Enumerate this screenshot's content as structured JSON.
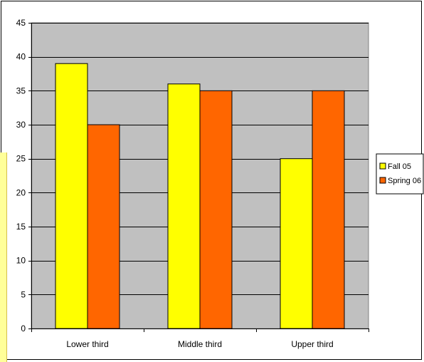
{
  "chart_data": {
    "type": "bar",
    "title": "",
    "xlabel": "",
    "ylabel": "",
    "categories": [
      "Lower third",
      "Middle third",
      "Upper third"
    ],
    "series": [
      {
        "name": "Fall 05",
        "values": [
          39,
          36,
          25
        ],
        "color": "#ffff00"
      },
      {
        "name": "Spring 06",
        "values": [
          30,
          35,
          35
        ],
        "color": "#ff6600"
      }
    ],
    "ylim": [
      0,
      45
    ],
    "yticks": [
      0,
      5,
      10,
      15,
      20,
      25,
      30,
      35,
      40,
      45
    ],
    "grid": true,
    "plot_background": "#c0c0c0",
    "legend_position": "right"
  }
}
